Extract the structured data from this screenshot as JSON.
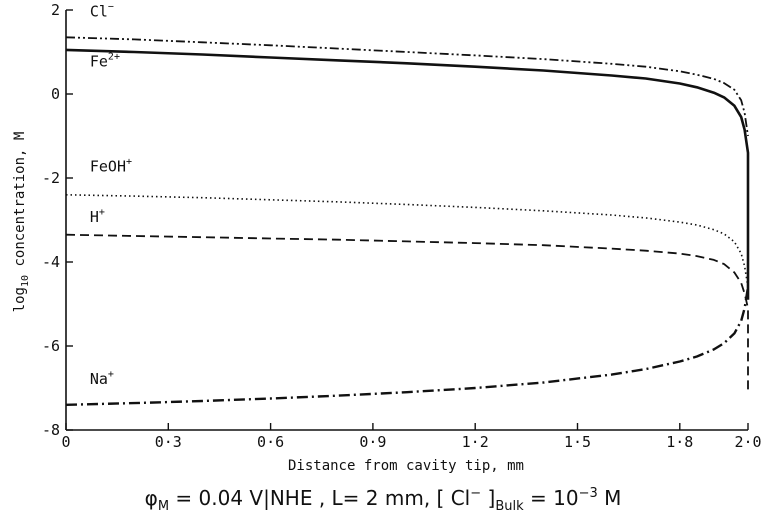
{
  "chart_data": {
    "type": "line",
    "xlabel": "Distance from cavity tip, mm",
    "ylabel": {
      "prefix": "log",
      "sub": "10",
      "suffix": " concentration, M"
    },
    "xlim": [
      0,
      2.0
    ],
    "ylim": [
      -8,
      2
    ],
    "x_ticks": [
      {
        "value": 0.0,
        "label": "0"
      },
      {
        "value": 0.3,
        "label": "0·3"
      },
      {
        "value": 0.6,
        "label": "0·6"
      },
      {
        "value": 0.9,
        "label": "0·9"
      },
      {
        "value": 1.2,
        "label": "1·2"
      },
      {
        "value": 1.5,
        "label": "1·5"
      },
      {
        "value": 1.8,
        "label": "1·8"
      },
      {
        "value": 2.0,
        "label": "2·0"
      }
    ],
    "y_ticks": [
      {
        "value": 2,
        "label": "2"
      },
      {
        "value": 0,
        "label": "0"
      },
      {
        "value": -2,
        "label": "-2"
      },
      {
        "value": -4,
        "label": "-4"
      },
      {
        "value": -6,
        "label": "-6"
      },
      {
        "value": -8,
        "label": "-8"
      }
    ],
    "grid": false,
    "series": [
      {
        "name": "Cl",
        "label_sup": "−",
        "style": "dash-dot-dot",
        "label_pos": [
          0.07,
          1.85
        ],
        "x": [
          0,
          0.2,
          0.4,
          0.6,
          0.8,
          1.0,
          1.2,
          1.4,
          1.6,
          1.7,
          1.8,
          1.85,
          1.9,
          1.93,
          1.96,
          1.98,
          1.99,
          2.0
        ],
        "y": [
          1.35,
          1.3,
          1.23,
          1.16,
          1.08,
          1.0,
          0.92,
          0.83,
          0.72,
          0.65,
          0.54,
          0.46,
          0.36,
          0.26,
          0.1,
          -0.15,
          -0.45,
          -1.0
        ]
      },
      {
        "name": "Fe",
        "label_sup": "2+",
        "style": "solid",
        "label_pos": [
          0.07,
          0.65
        ],
        "x": [
          0,
          0.2,
          0.4,
          0.6,
          0.8,
          1.0,
          1.2,
          1.4,
          1.6,
          1.7,
          1.8,
          1.85,
          1.9,
          1.93,
          1.96,
          1.98,
          1.99,
          2.0,
          2.0
        ],
        "y": [
          1.05,
          1.0,
          0.94,
          0.87,
          0.8,
          0.73,
          0.65,
          0.56,
          0.44,
          0.37,
          0.25,
          0.16,
          0.03,
          -0.08,
          -0.28,
          -0.55,
          -0.85,
          -1.4,
          -4.9
        ]
      },
      {
        "name": "FeOH",
        "label_sup": "+",
        "style": "dotted",
        "label_pos": [
          0.07,
          -1.85
        ],
        "x": [
          0,
          0.2,
          0.4,
          0.6,
          0.8,
          1.0,
          1.2,
          1.4,
          1.6,
          1.7,
          1.8,
          1.85,
          1.9,
          1.93,
          1.96,
          1.98,
          1.99,
          2.0
        ],
        "y": [
          -2.4,
          -2.43,
          -2.47,
          -2.52,
          -2.57,
          -2.63,
          -2.7,
          -2.78,
          -2.88,
          -2.95,
          -3.05,
          -3.12,
          -3.23,
          -3.33,
          -3.52,
          -3.8,
          -4.1,
          -4.6
        ]
      },
      {
        "name": "H",
        "label_sup": "+",
        "style": "dashed",
        "label_pos": [
          0.07,
          -3.05
        ],
        "x": [
          0,
          0.2,
          0.4,
          0.6,
          0.8,
          1.0,
          1.2,
          1.4,
          1.6,
          1.7,
          1.8,
          1.85,
          1.9,
          1.93,
          1.96,
          1.98,
          1.99,
          2.0,
          2.0
        ],
        "y": [
          -3.35,
          -3.38,
          -3.41,
          -3.44,
          -3.47,
          -3.51,
          -3.55,
          -3.6,
          -3.68,
          -3.73,
          -3.8,
          -3.86,
          -3.95,
          -4.05,
          -4.25,
          -4.5,
          -4.75,
          -5.1,
          -7.1
        ]
      },
      {
        "name": "Na",
        "label_sup": "+",
        "style": "dash-dot",
        "label_pos": [
          0.07,
          -6.9
        ],
        "x": [
          0,
          0.2,
          0.4,
          0.6,
          0.8,
          1.0,
          1.2,
          1.4,
          1.6,
          1.7,
          1.8,
          1.85,
          1.9,
          1.93,
          1.96,
          1.98,
          1.99,
          2.0
        ],
        "y": [
          -7.4,
          -7.36,
          -7.31,
          -7.25,
          -7.18,
          -7.1,
          -7.0,
          -6.87,
          -6.68,
          -6.55,
          -6.37,
          -6.25,
          -6.08,
          -5.93,
          -5.7,
          -5.4,
          -5.1,
          -4.6
        ]
      }
    ]
  },
  "caption": {
    "phi": "φ",
    "phi_sub": "M",
    "part1": " = 0.04 V|NHE , L= 2 mm, [ Cl",
    "cl_sup": "−",
    "part2": " ]",
    "bulk_sub": "Bulk",
    "part3": " = 10",
    "exp_sup": "−3",
    "part4": " M"
  }
}
